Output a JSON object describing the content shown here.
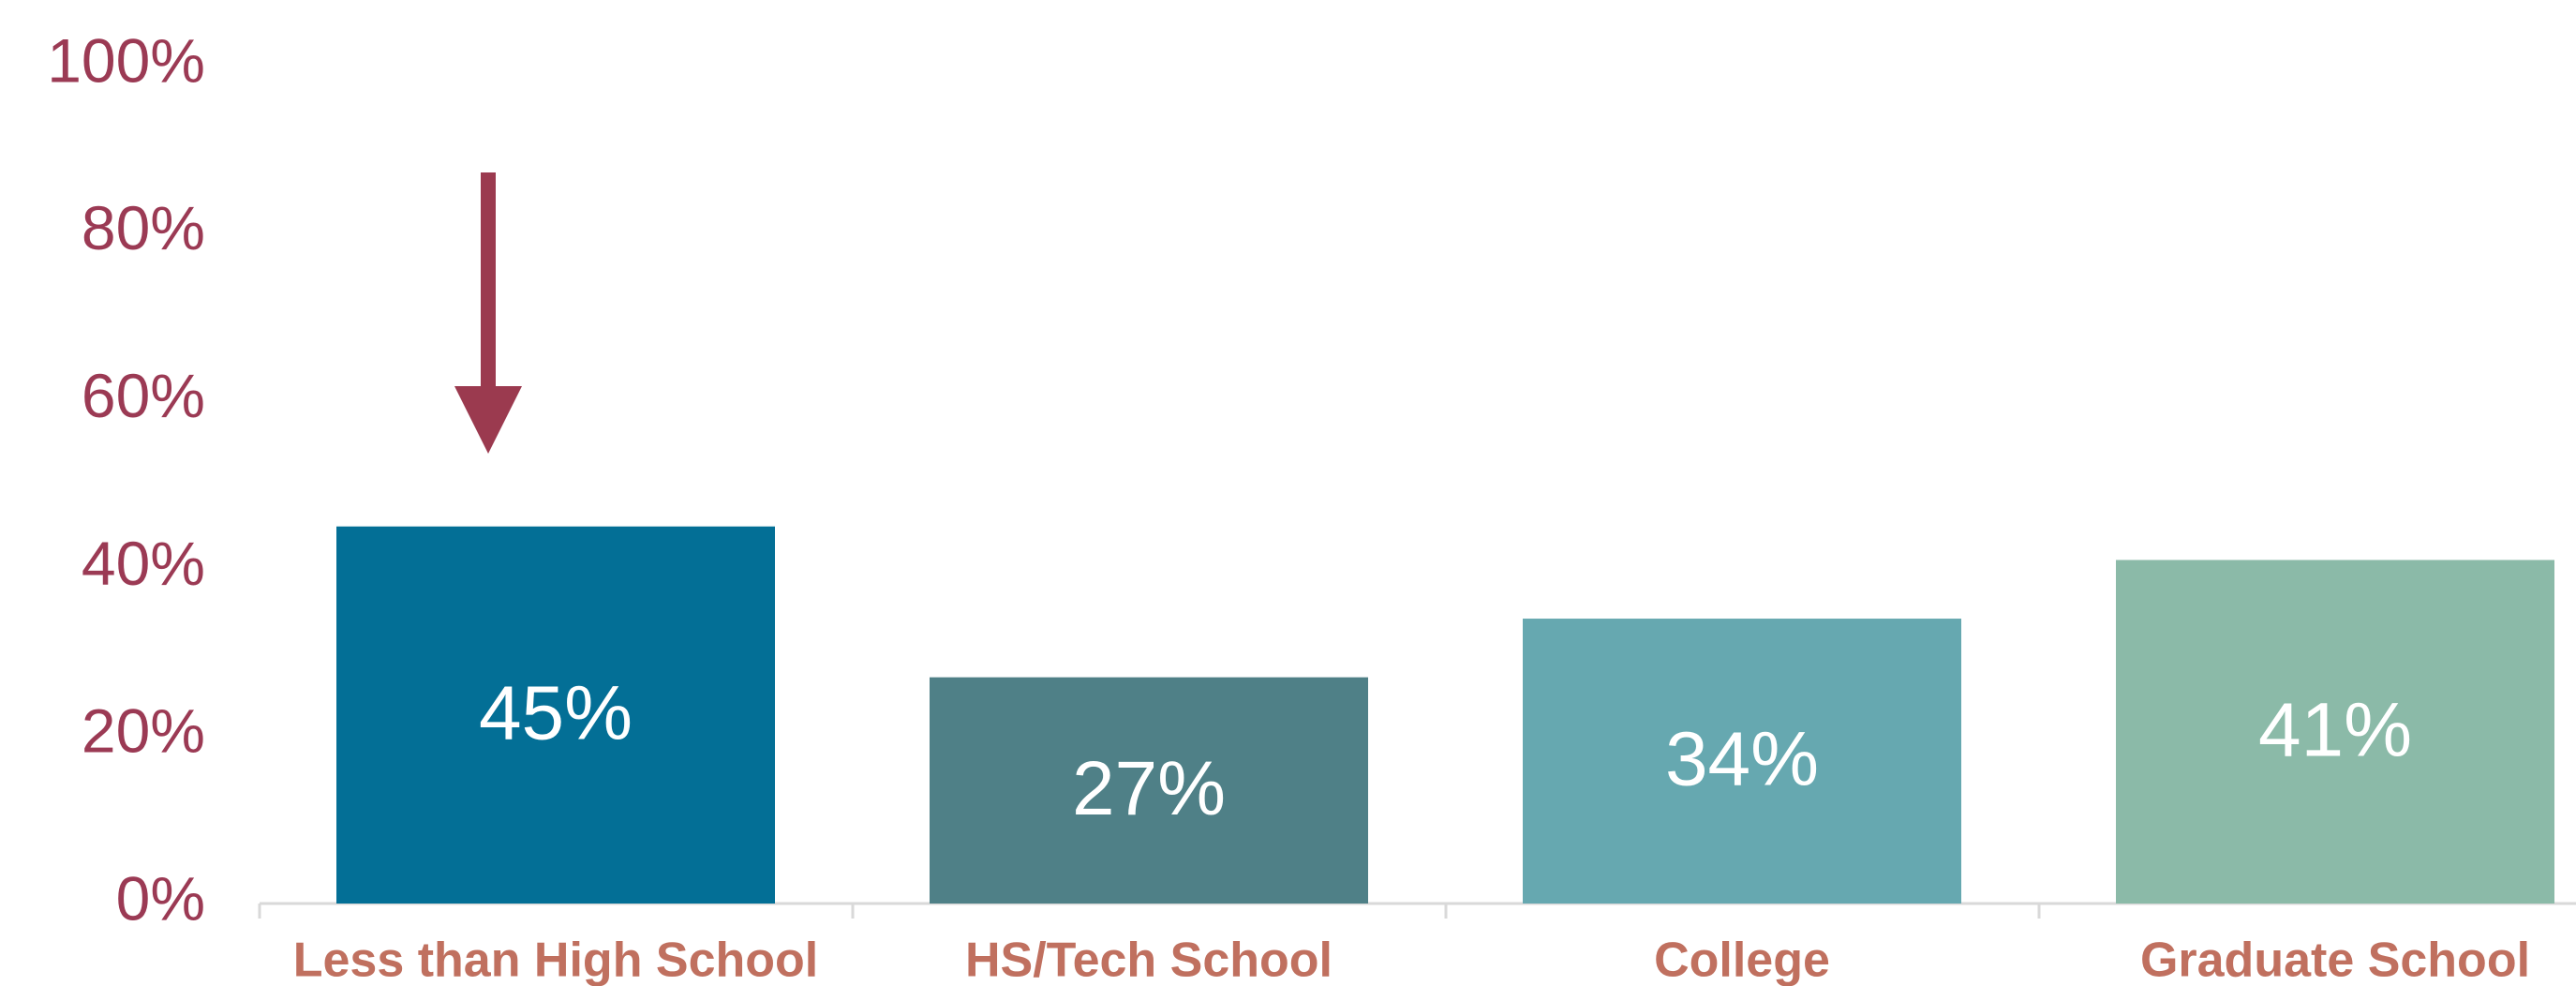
{
  "chart_data": {
    "type": "bar",
    "categories": [
      "Less than High School",
      "HS/Tech School",
      "College",
      "Graduate School"
    ],
    "values": [
      45,
      27,
      34,
      41
    ],
    "value_labels": [
      "45%",
      "27%",
      "34%",
      "41%"
    ],
    "colors": [
      "#036f96",
      "#4f8087",
      "#66a8b0",
      "#8bbaa8"
    ],
    "ylim": [
      0,
      100
    ],
    "yticks": [
      {
        "value": 0,
        "label": "0%"
      },
      {
        "value": 20,
        "label": "20%"
      },
      {
        "value": 40,
        "label": "40%"
      },
      {
        "value": 60,
        "label": "60%"
      },
      {
        "value": 80,
        "label": "80%"
      },
      {
        "value": 100,
        "label": "100%"
      }
    ],
    "grid": false
  }
}
